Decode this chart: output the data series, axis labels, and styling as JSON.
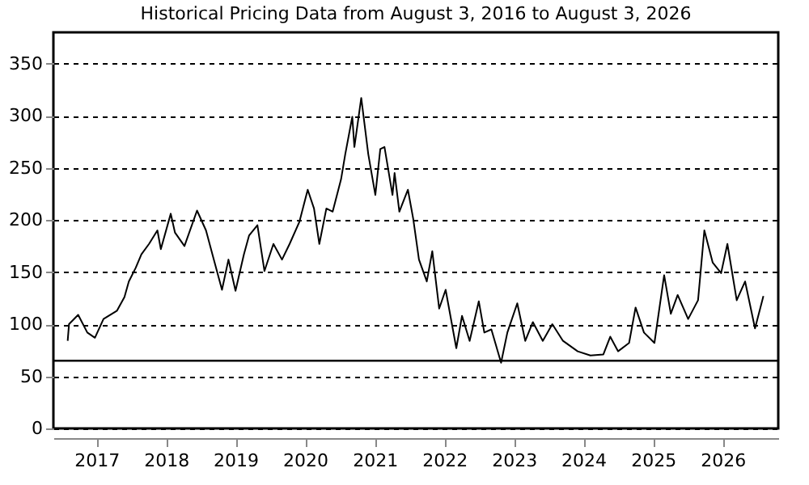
{
  "chart_data": {
    "type": "line",
    "title": "Historical Pricing Data from August 3, 2016 to August 3, 2026",
    "x": [
      "2016-08-03",
      "2016-08-10",
      "2016-09-27",
      "2016-11-14",
      "2016-12-24",
      "2017-02-07",
      "2017-04-19",
      "2017-05-28",
      "2017-06-20",
      "2017-07-26",
      "2017-08-25",
      "2017-10-04",
      "2017-11-17",
      "2017-12-05",
      "2018-01-26",
      "2018-02-17",
      "2018-04-08",
      "2018-06-13",
      "2018-07-30",
      "2018-09-09",
      "2018-10-22",
      "2018-11-25",
      "2019-01-01",
      "2019-02-14",
      "2019-03-13",
      "2019-04-26",
      "2019-06-02",
      "2019-07-19",
      "2019-09-02",
      "2019-10-12",
      "2019-12-02",
      "2020-01-15",
      "2020-02-17",
      "2020-03-16",
      "2020-04-22",
      "2020-05-25",
      "2020-07-08",
      "2020-07-30",
      "2020-09-05",
      "2020-09-16",
      "2020-10-22",
      "2020-11-28",
      "2021-01-04",
      "2021-01-30",
      "2021-02-21",
      "2021-04-04",
      "2021-04-15",
      "2021-05-10",
      "2021-06-24",
      "2021-07-22",
      "2021-08-21",
      "2021-10-01",
      "2021-10-30",
      "2021-12-05",
      "2022-01-08",
      "2022-03-05",
      "2022-04-04",
      "2022-05-14",
      "2022-07-01",
      "2022-07-30",
      "2022-09-05",
      "2022-10-26",
      "2022-11-28",
      "2023-01-19",
      "2023-03-02",
      "2023-04-11",
      "2023-06-02",
      "2023-07-22",
      "2023-09-16",
      "2023-12-02",
      "2024-02-07",
      "2024-04-15",
      "2024-05-21",
      "2024-07-01",
      "2024-08-28",
      "2024-10-01",
      "2024-11-14",
      "2025-01-08",
      "2025-02-28",
      "2025-04-04",
      "2025-05-10",
      "2025-07-04",
      "2025-08-25",
      "2025-09-27",
      "2025-11-10",
      "2025-12-24",
      "2026-01-26",
      "2026-03-16",
      "2026-04-29",
      "2026-06-20",
      "2026-08-03"
    ],
    "series": [
      {
        "color": "#000000",
        "values": [
          84,
          100,
          109,
          92,
          87,
          105,
          113,
          126,
          141,
          154,
          167,
          177,
          190,
          172,
          206,
          188,
          175,
          209,
          190,
          162,
          133,
          162,
          132,
          167,
          185,
          195,
          151,
          177,
          162,
          177,
          198,
          229,
          211,
          177,
          211,
          208,
          239,
          263,
          299,
          270,
          317,
          263,
          224,
          268,
          270,
          224,
          245,
          208,
          229,
          201,
          162,
          141,
          170,
          115,
          133,
          77,
          108,
          84,
          122,
          92,
          95,
          63,
          92,
          120,
          84,
          102,
          84,
          100,
          84,
          74,
          70,
          71,
          88,
          74,
          82,
          116,
          92,
          82,
          147,
          110,
          128,
          105,
          123,
          190,
          159,
          149,
          177,
          123,
          141,
          96,
          127
        ]
      }
    ],
    "xlim": [
      "2016-05-20",
      "2026-10-20"
    ],
    "xticks": [
      {
        "value": "2017-01-01",
        "label": "2017"
      },
      {
        "value": "2018-01-01",
        "label": "2018"
      },
      {
        "value": "2019-01-01",
        "label": "2019"
      },
      {
        "value": "2020-01-01",
        "label": "2020"
      },
      {
        "value": "2021-01-01",
        "label": "2021"
      },
      {
        "value": "2022-01-01",
        "label": "2022"
      },
      {
        "value": "2023-01-01",
        "label": "2023"
      },
      {
        "value": "2024-01-01",
        "label": "2024"
      },
      {
        "value": "2025-01-01",
        "label": "2025"
      },
      {
        "value": "2026-01-01",
        "label": "2026"
      }
    ],
    "ylim": [
      0,
      380
    ],
    "yticks": [
      0,
      50,
      100,
      150,
      200,
      250,
      300,
      350
    ],
    "grid": "y",
    "marker": "none",
    "line_style": "solid",
    "ref_lines": [
      {
        "axis": "y",
        "value": 65,
        "color": "#000000",
        "line_style": "solid"
      }
    ]
  }
}
